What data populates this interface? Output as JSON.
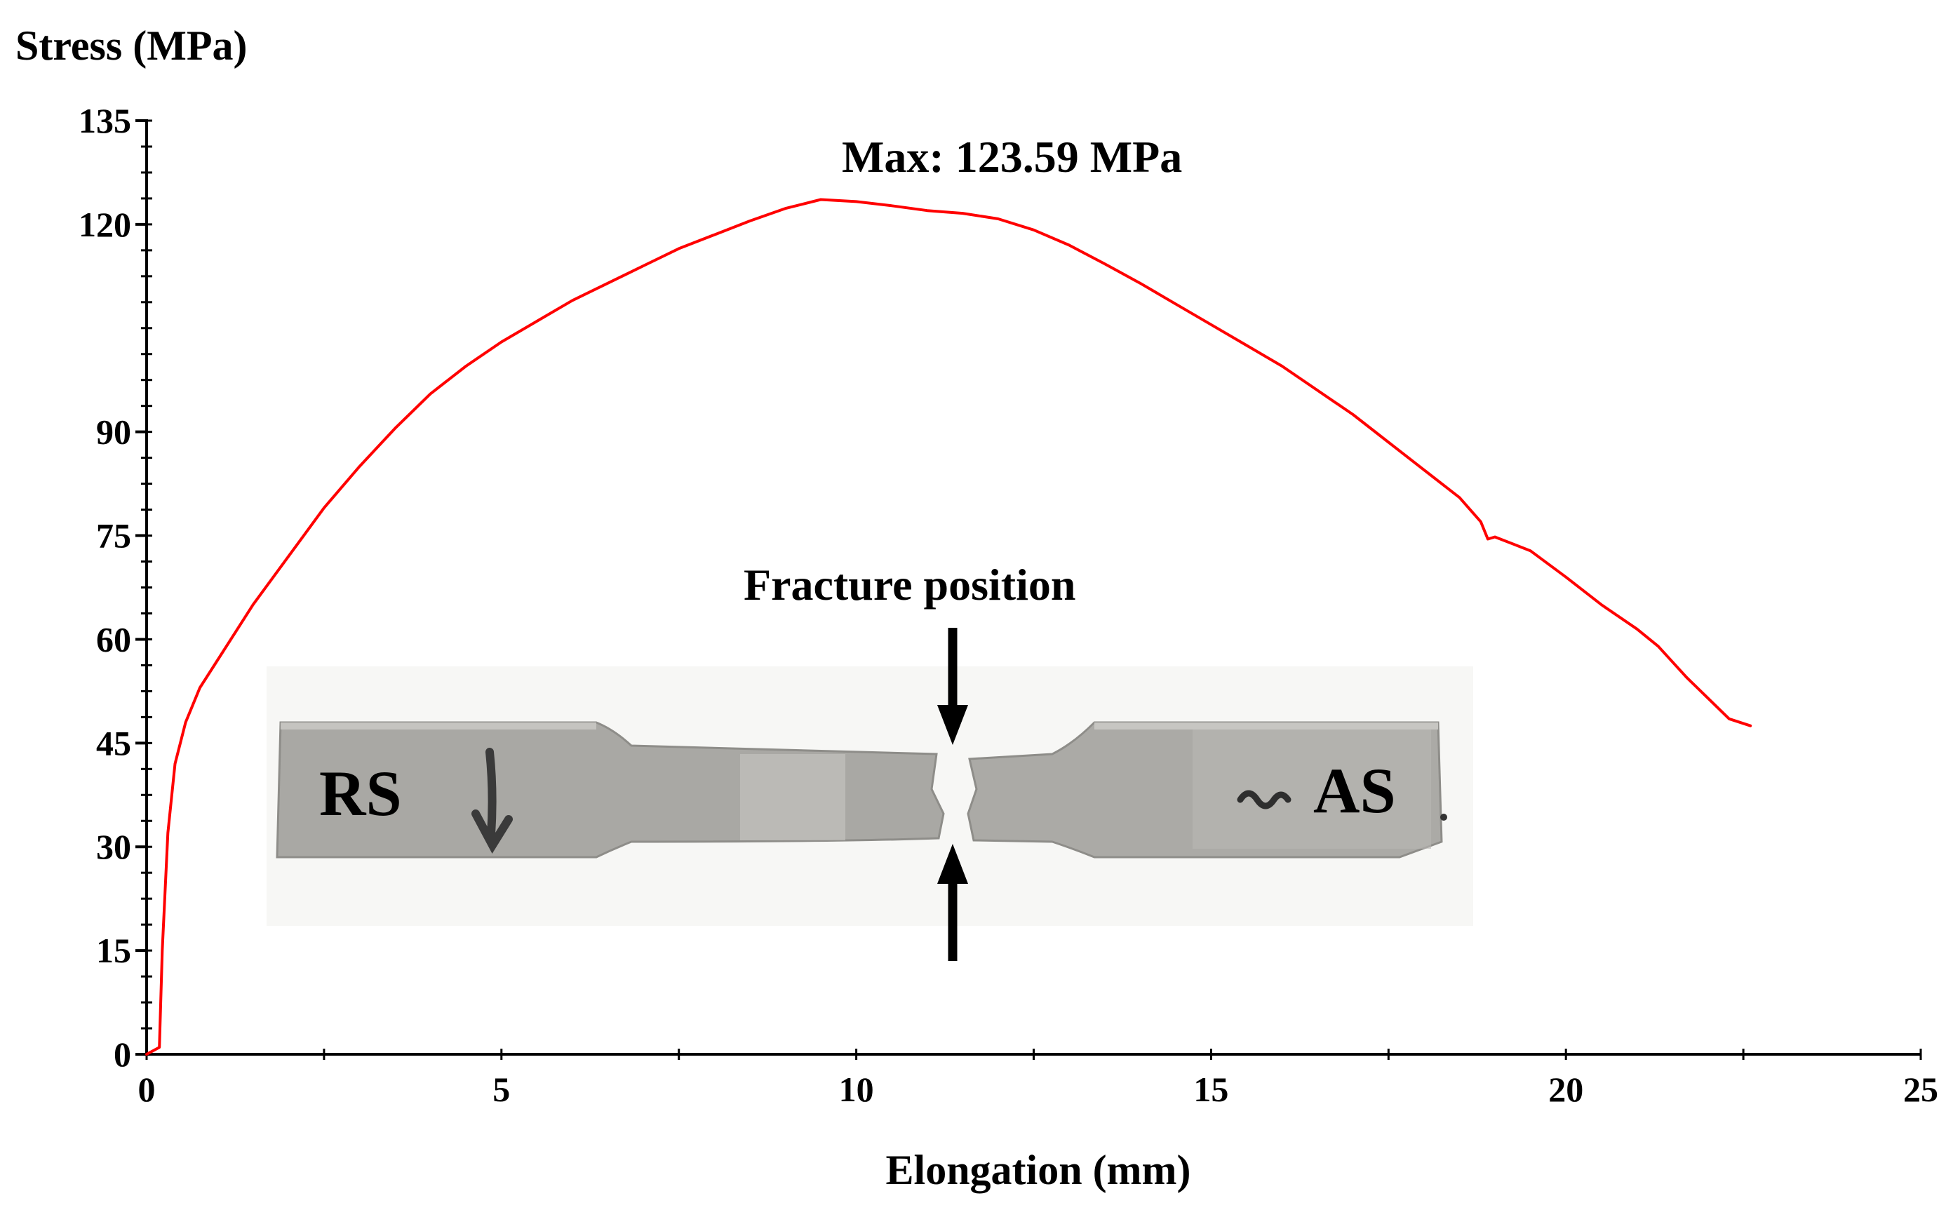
{
  "chart_data": {
    "type": "line",
    "title": "",
    "xlabel": "Elongation (mm)",
    "ylabel": "Stress (MPa)",
    "xlim": [
      0,
      25
    ],
    "ylim": [
      0,
      135
    ],
    "x_ticks": [
      0,
      5,
      10,
      15,
      20,
      25
    ],
    "x_tick_labels": [
      "0",
      "5",
      "10",
      "15",
      "20",
      "25"
    ],
    "y_ticks": [
      0,
      15,
      30,
      45,
      60,
      75,
      90,
      120,
      135
    ],
    "y_tick_labels": [
      "0",
      "15",
      "30",
      "45",
      "60",
      "75",
      "90",
      "120",
      "135"
    ],
    "y_minor_step": 3.75,
    "x_minor_step": 2.5,
    "grid": false,
    "legend": "none",
    "series": [
      {
        "color": "#ff0000",
        "x": [
          0,
          0.18,
          0.22,
          0.3,
          0.4,
          0.55,
          0.75,
          1.0,
          1.5,
          2.0,
          2.5,
          3.0,
          3.5,
          4.0,
          4.5,
          5.0,
          5.5,
          6.0,
          6.5,
          7.0,
          7.5,
          8.0,
          8.5,
          9.0,
          9.5,
          10.0,
          10.5,
          11.0,
          11.5,
          12.0,
          12.5,
          13.0,
          13.5,
          14.0,
          14.5,
          15.0,
          15.5,
          16.0,
          16.5,
          17.0,
          17.5,
          18.0,
          18.5,
          18.8,
          18.9,
          19.0,
          19.5,
          20.0,
          20.5,
          21.0,
          21.3,
          21.7,
          22.0,
          22.3,
          22.6
        ],
        "values": [
          0,
          1,
          15,
          32,
          42,
          48,
          53,
          57,
          65,
          72,
          79,
          85,
          90.5,
          95.5,
          99.5,
          103,
          106,
          109,
          111.5,
          114,
          116.5,
          118.5,
          120.5,
          122.3,
          123.59,
          123.3,
          122.7,
          122,
          121.6,
          120.8,
          119.2,
          117,
          114.3,
          111.5,
          108.5,
          105.5,
          102.5,
          99.5,
          96,
          92.5,
          88.5,
          84.5,
          80.5,
          77,
          74.5,
          74.8,
          72.8,
          69,
          65,
          61.5,
          59,
          54.5,
          51.5,
          48.5,
          47.5
        ]
      }
    ],
    "annotations": {
      "max_label": "Max: 123.59 MPa",
      "fracture_label": "Fracture position",
      "rs_label": "RS",
      "as_label": "AS"
    }
  },
  "colors": {
    "line": "#ff0000",
    "axis": "#000000",
    "specimen": "#a8a7a3",
    "specimen_dark": "#8f8e8a"
  }
}
